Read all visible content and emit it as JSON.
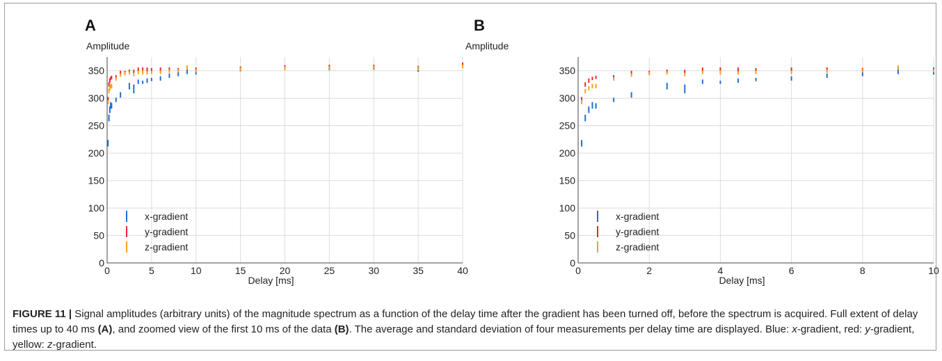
{
  "caption": {
    "label": "FIGURE 11 |",
    "text_1": " Signal amplitudes (arbitrary units) of the magnitude spectrum as a function of the delay time after the gradient has been turned off, before the spectrum is acquired. Full extent of delay times up to 40 ms ",
    "ref_a": "(A)",
    "text_2": ", and zoomed view of the first 10 ms of the data ",
    "ref_b": "(B)",
    "text_3": ". The average and standard deviation of four measurements per delay time are displayed. Blue: ",
    "x_var": "x",
    "text_4": "-gradient, red: ",
    "y_var": "y",
    "text_5": "-gradient, yellow: ",
    "z_var": "z",
    "text_6": "-gradient."
  },
  "colors": {
    "x": "#1f6fd0",
    "y": "#e8262b",
    "z": "#f5a21b",
    "grid": "#dcdcdc"
  },
  "chart_data": [
    {
      "panel": "A",
      "type": "scatter",
      "ylabel": "Amplitude",
      "xlabel": "Delay [ms]",
      "xlim": [
        0,
        40
      ],
      "ylim": [
        0,
        375
      ],
      "xticks": [
        0,
        5,
        10,
        15,
        20,
        25,
        30,
        35,
        40
      ],
      "yticks": [
        0,
        50,
        100,
        150,
        200,
        250,
        300,
        350
      ],
      "grid": true,
      "legend_position": "bottom-left",
      "series": [
        {
          "name": "x-gradient",
          "color_key": "x",
          "x": [
            0.1,
            0.2,
            0.3,
            0.4,
            0.5,
            1,
            1.5,
            2.5,
            3,
            3.5,
            4,
            4.5,
            5,
            6,
            7,
            8,
            9,
            10,
            15,
            20,
            25,
            30,
            35,
            40
          ],
          "y": [
            218,
            264,
            279,
            287,
            286,
            297,
            306,
            322,
            317,
            330,
            329,
            332,
            334,
            336,
            341,
            344,
            348,
            347,
            352,
            355,
            354,
            355,
            352,
            358
          ],
          "err": [
            6,
            6,
            6,
            6,
            5,
            4,
            5,
            6,
            8,
            4,
            3,
            4,
            3,
            4,
            4,
            4,
            4,
            4,
            3,
            3,
            3,
            3,
            4,
            3
          ]
        },
        {
          "name": "y-gradient",
          "color_key": "y",
          "x": [
            0.1,
            0.2,
            0.3,
            0.4,
            0.5,
            1,
            1.5,
            2,
            2.5,
            3,
            3.5,
            4,
            4.5,
            5,
            6,
            7,
            8,
            9,
            10,
            15,
            20,
            25,
            30,
            35,
            40
          ],
          "y": [
            298,
            325,
            332,
            336,
            338,
            339,
            347,
            347,
            349,
            349,
            353,
            352,
            352,
            352,
            353,
            353,
            352,
            355,
            353,
            355,
            357,
            357,
            358,
            356,
            362
          ],
          "err": [
            4,
            4,
            4,
            3,
            3,
            3,
            3,
            3,
            3,
            3,
            3,
            4,
            4,
            3,
            3,
            3,
            3,
            3,
            3,
            3,
            3,
            4,
            3,
            3,
            3
          ]
        },
        {
          "name": "z-gradient",
          "color_key": "z",
          "x": [
            0.1,
            0.2,
            0.3,
            0.4,
            0.5,
            1,
            1.5,
            2,
            2.5,
            3,
            3.5,
            4,
            4.5,
            5,
            6,
            7,
            8,
            9,
            10,
            15,
            20,
            25,
            30,
            35,
            40
          ],
          "y": [
            293,
            313,
            318,
            322,
            322,
            335,
            342,
            345,
            346,
            343,
            347,
            347,
            346,
            347,
            347,
            349,
            350,
            356,
            350,
            353,
            354,
            355,
            356,
            354,
            358
          ],
          "err": [
            4,
            4,
            4,
            4,
            4,
            3,
            3,
            3,
            3,
            3,
            3,
            4,
            3,
            3,
            3,
            3,
            3,
            4,
            3,
            3,
            3,
            3,
            3,
            3,
            3
          ]
        }
      ]
    },
    {
      "panel": "B",
      "type": "scatter",
      "ylabel": "Amplitude",
      "xlabel": "Delay [ms]",
      "xlim": [
        0,
        10
      ],
      "ylim": [
        0,
        375
      ],
      "xticks": [
        0,
        2,
        4,
        6,
        8,
        10
      ],
      "yticks": [
        0,
        50,
        100,
        150,
        200,
        250,
        300,
        350
      ],
      "grid": true,
      "legend_position": "bottom-left",
      "series": [
        {
          "name": "x-gradient",
          "color_key": "x",
          "x": [
            0.1,
            0.2,
            0.3,
            0.4,
            0.5,
            1,
            1.5,
            2.5,
            3,
            3.5,
            4,
            4.5,
            5,
            6,
            7,
            8,
            9,
            10
          ],
          "y": [
            218,
            264,
            279,
            287,
            286,
            297,
            306,
            322,
            317,
            330,
            329,
            332,
            334,
            336,
            341,
            344,
            348,
            347
          ],
          "err": [
            6,
            6,
            6,
            6,
            5,
            4,
            5,
            6,
            8,
            4,
            3,
            4,
            3,
            4,
            4,
            4,
            4,
            4
          ]
        },
        {
          "name": "y-gradient",
          "color_key": "y",
          "x": [
            0.1,
            0.2,
            0.3,
            0.4,
            0.5,
            1,
            1.5,
            2,
            2.5,
            3,
            3.5,
            4,
            4.5,
            5,
            6,
            7,
            8,
            9,
            10
          ],
          "y": [
            298,
            325,
            332,
            336,
            338,
            339,
            347,
            347,
            349,
            349,
            353,
            352,
            352,
            352,
            353,
            353,
            352,
            355,
            353
          ],
          "err": [
            4,
            4,
            4,
            3,
            3,
            3,
            3,
            3,
            3,
            3,
            3,
            4,
            4,
            3,
            3,
            3,
            3,
            3,
            3
          ]
        },
        {
          "name": "z-gradient",
          "color_key": "z",
          "x": [
            0.1,
            0.2,
            0.3,
            0.4,
            0.5,
            1,
            1.5,
            2,
            2.5,
            3,
            3.5,
            4,
            4.5,
            5,
            6,
            7,
            8,
            9,
            10
          ],
          "y": [
            293,
            313,
            318,
            322,
            322,
            335,
            342,
            345,
            346,
            343,
            347,
            347,
            346,
            347,
            347,
            349,
            350,
            356,
            350
          ],
          "err": [
            4,
            4,
            4,
            4,
            4,
            3,
            3,
            3,
            3,
            3,
            3,
            4,
            3,
            3,
            3,
            3,
            3,
            4,
            3
          ]
        }
      ]
    }
  ]
}
